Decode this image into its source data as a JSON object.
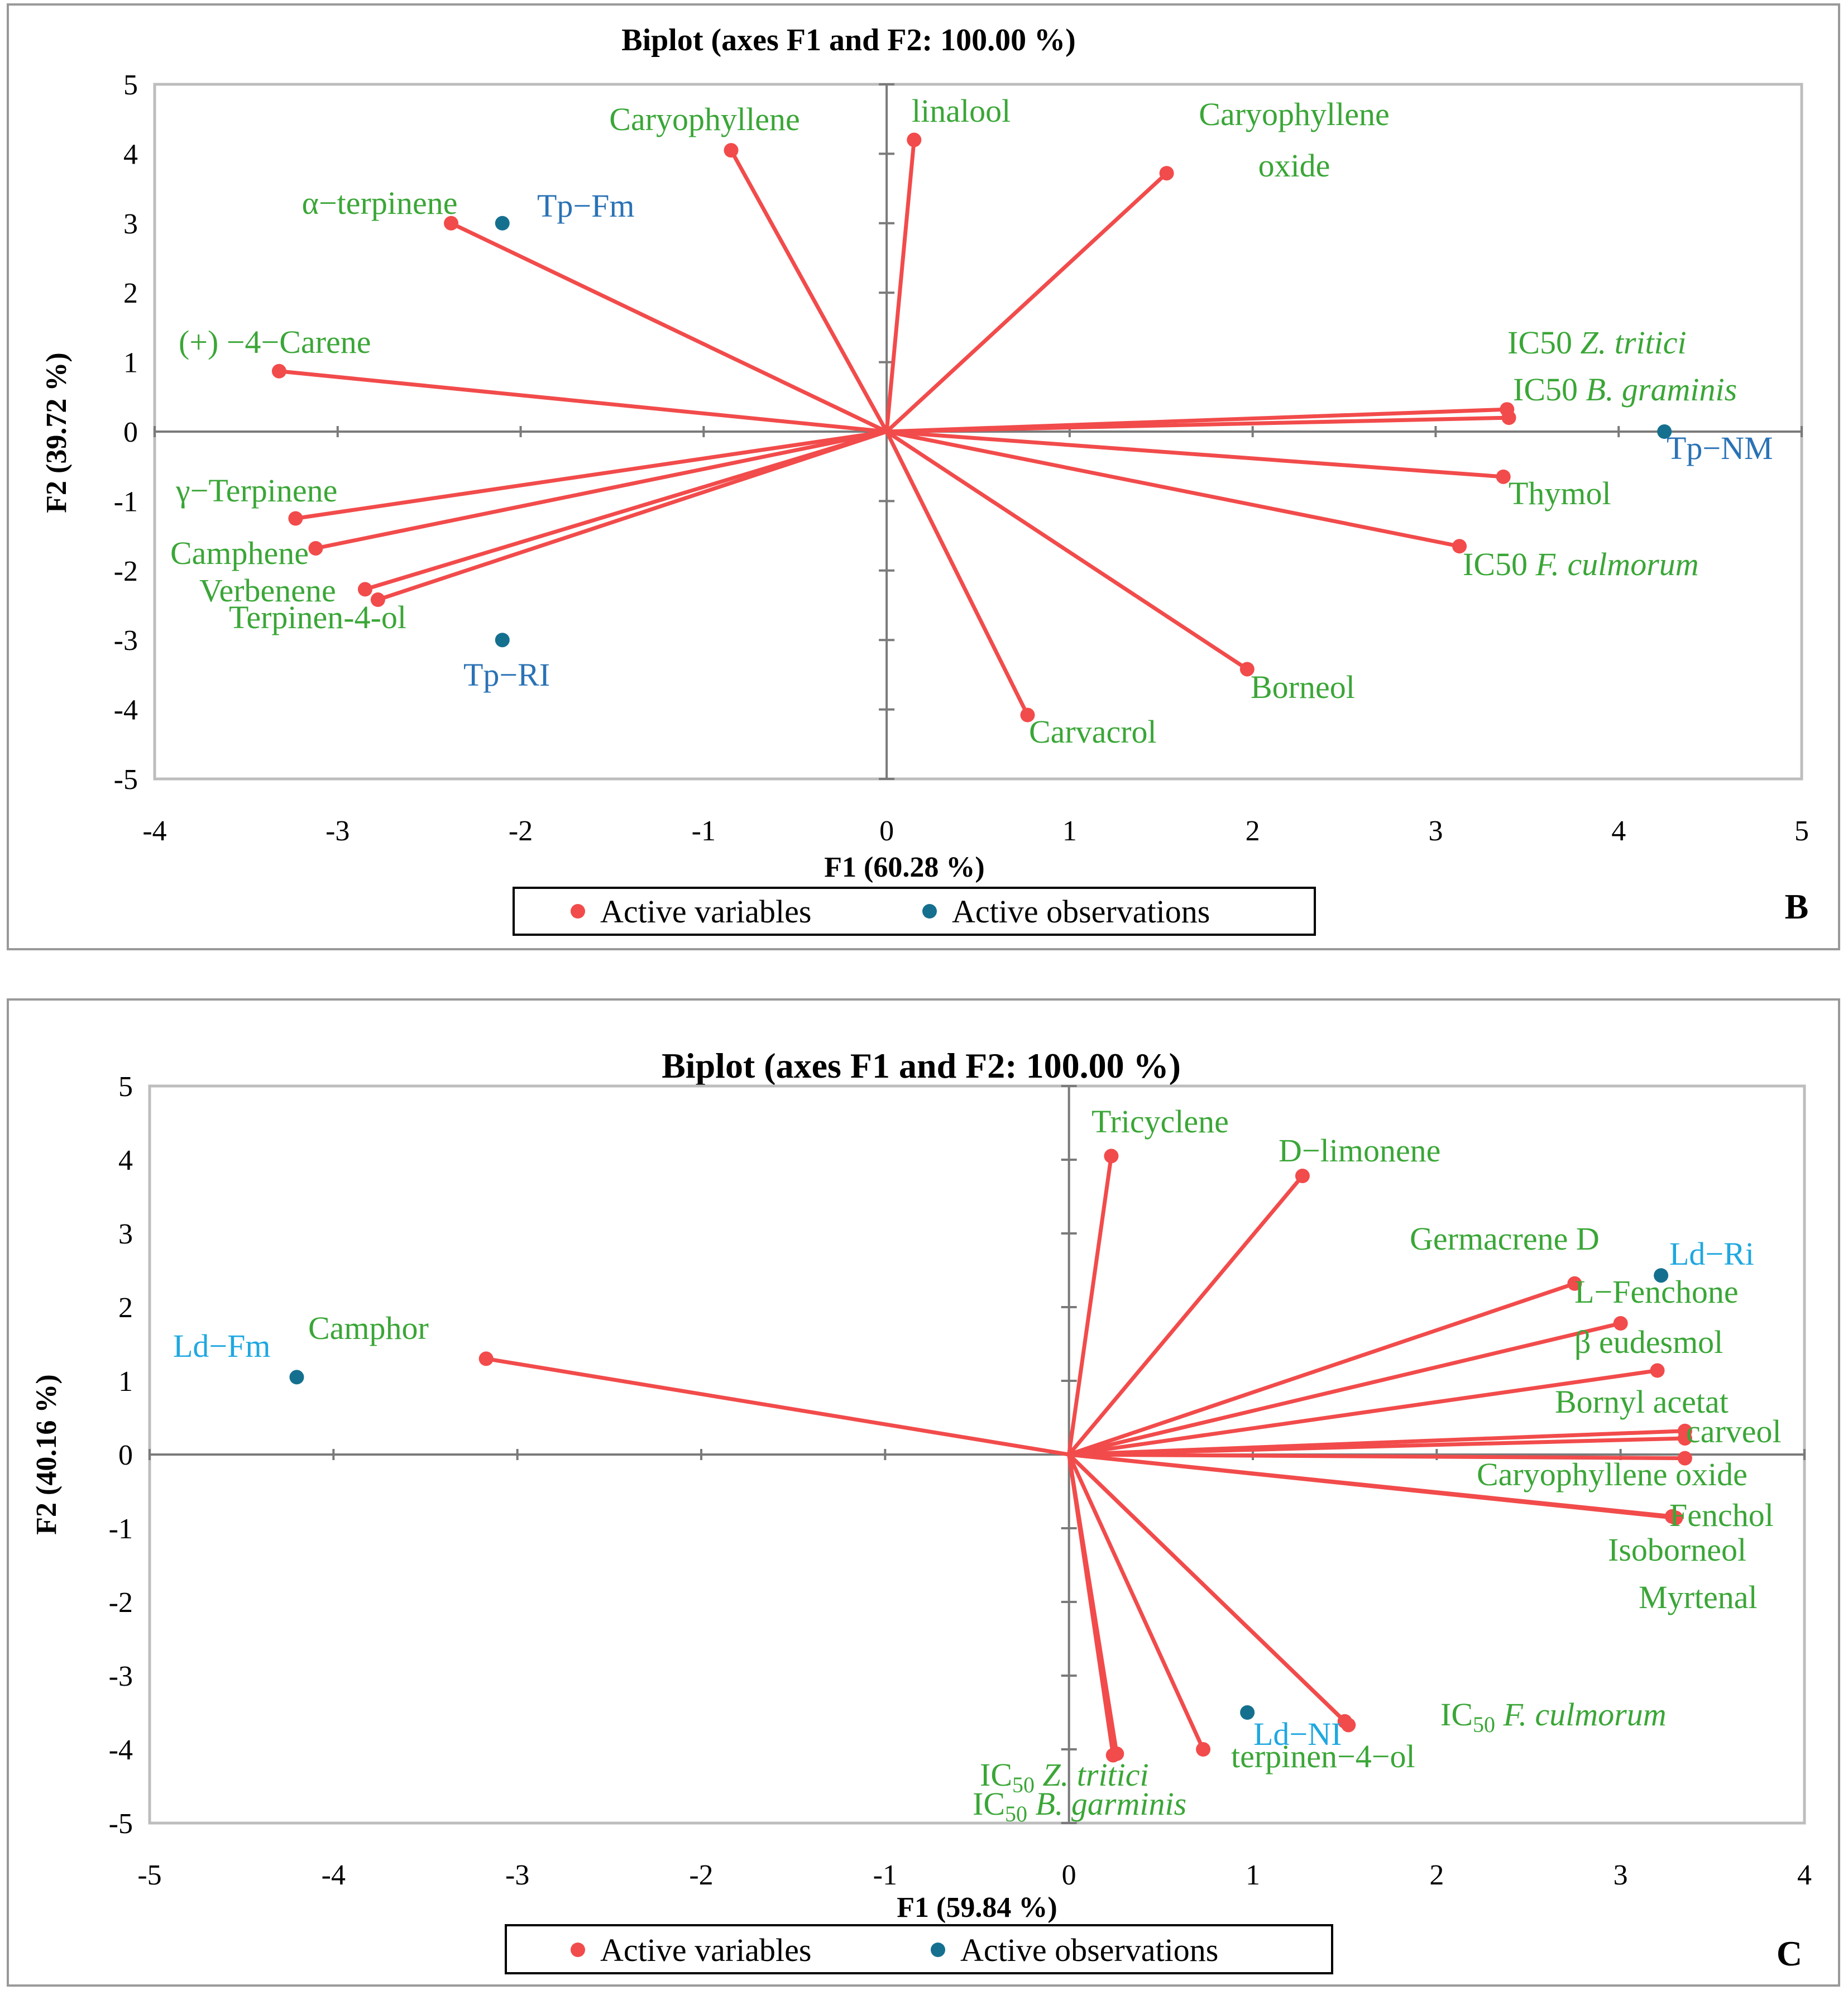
{
  "colors": {
    "variable": "#f24b4b",
    "observation": "#15708f",
    "variable_label": "#3aa637",
    "obs_label_B": "#2a72b5",
    "obs_label_C": "#1fa8e0"
  },
  "chart_data": [
    {
      "type": "scatter",
      "panel": "B",
      "title": "Biplot (axes F1 and F2: 100.00 %)",
      "xlabel": "F1 (60.28 %)",
      "ylabel": "F2 (39.72 %)",
      "xlim": [
        -4,
        5
      ],
      "ylim": [
        -5,
        5
      ],
      "xticks": [
        "-4",
        "-3",
        "-2",
        "-1",
        "0",
        "1",
        "2",
        "3",
        "4",
        "5"
      ],
      "yticks": [
        "5",
        "4",
        "3",
        "2",
        "1",
        "0",
        "-1",
        "-2",
        "-3",
        "-4",
        "-5"
      ],
      "legend": [
        "Active variables",
        "Active observations"
      ],
      "variables": [
        {
          "label": "Caryophyllene",
          "x": -0.85,
          "y": 4.05
        },
        {
          "label": "linalool",
          "x": 0.15,
          "y": 4.2
        },
        {
          "label": "Caryophyllene oxide",
          "x": 1.53,
          "y": 3.72
        },
        {
          "label": "α−terpinene",
          "x": -2.38,
          "y": 3.0
        },
        {
          "label": "(+) −4−Carene",
          "x": -3.32,
          "y": 0.87
        },
        {
          "label": "IC50 Z. tritici",
          "x": 3.39,
          "y": 0.32
        },
        {
          "label": "IC50 B. graminis",
          "x": 3.4,
          "y": 0.2
        },
        {
          "label": "Thymol",
          "x": 3.37,
          "y": -0.65
        },
        {
          "label": "IC50 F. culmorum",
          "x": 3.13,
          "y": -1.65
        },
        {
          "label": "γ−Terpinene",
          "x": -3.23,
          "y": -1.25
        },
        {
          "label": "Camphene",
          "x": -3.12,
          "y": -1.68
        },
        {
          "label": "Verbenene",
          "x": -2.85,
          "y": -2.27
        },
        {
          "label": "Terpinen-4-ol",
          "x": -2.78,
          "y": -2.42
        },
        {
          "label": "Borneol",
          "x": 1.97,
          "y": -3.42
        },
        {
          "label": "Carvacrol",
          "x": 0.77,
          "y": -4.08
        }
      ],
      "observations": [
        {
          "label": "Tp−Fm",
          "x": -2.1,
          "y": 3.0
        },
        {
          "label": "Tp−NM",
          "x": 4.25,
          "y": 0.0
        },
        {
          "label": "Tp−RI",
          "x": -2.1,
          "y": -3.0
        }
      ]
    },
    {
      "type": "scatter",
      "panel": "C",
      "title": "Biplot (axes F1 and F2: 100.00 %)",
      "xlabel": "F1 (59.84 %)",
      "ylabel": "F2 (40.16 %)",
      "xlim": [
        -5,
        4
      ],
      "ylim": [
        -5,
        5
      ],
      "xticks": [
        "-5",
        "-4",
        "-3",
        "-2",
        "-1",
        "0",
        "1",
        "2",
        "3",
        "4"
      ],
      "yticks": [
        "5",
        "4",
        "3",
        "2",
        "1",
        "0",
        "-1",
        "-2",
        "-3",
        "-4",
        "-5"
      ],
      "legend": [
        "Active variables",
        "Active observations"
      ],
      "variables": [
        {
          "label": "Camphor",
          "x": -3.17,
          "y": 1.3
        },
        {
          "label": "Tricyclene",
          "x": 0.23,
          "y": 4.05
        },
        {
          "label": "D−limonene",
          "x": 1.27,
          "y": 3.78
        },
        {
          "label": "Germacrene D",
          "x": 2.75,
          "y": 2.32
        },
        {
          "label": "L−Fenchone",
          "x": 3.0,
          "y": 1.78
        },
        {
          "label": "β eudesmol",
          "x": 3.2,
          "y": 1.14
        },
        {
          "label": "Bornyl acetat",
          "x": 3.35,
          "y": 0.32
        },
        {
          "label": "carveol",
          "x": 3.35,
          "y": 0.22
        },
        {
          "label": "Caryophyllene oxide",
          "x": 3.35,
          "y": -0.05
        },
        {
          "label": "Fenchol",
          "x": 3.28,
          "y": -0.84
        },
        {
          "label": "Isoborneol",
          "x": 3.3,
          "y": -0.86
        },
        {
          "label": "Myrtenal",
          "x": 1.52,
          "y": -3.67
        },
        {
          "label": "IC50 F. culmorum",
          "x": 1.5,
          "y": -3.62
        },
        {
          "label": "terpinen−4−ol",
          "x": 0.73,
          "y": -4.0
        },
        {
          "label": "IC50 Z. tritici",
          "x": 0.26,
          "y": -4.06
        },
        {
          "label": "IC50 B. garminis",
          "x": 0.24,
          "y": -4.08
        }
      ],
      "observations": [
        {
          "label": "Ld−Fm",
          "x": -4.2,
          "y": 1.05
        },
        {
          "label": "Ld−Ri",
          "x": 3.22,
          "y": 2.43
        },
        {
          "label": "Ld−NI",
          "x": 0.97,
          "y": -3.5
        }
      ]
    }
  ]
}
